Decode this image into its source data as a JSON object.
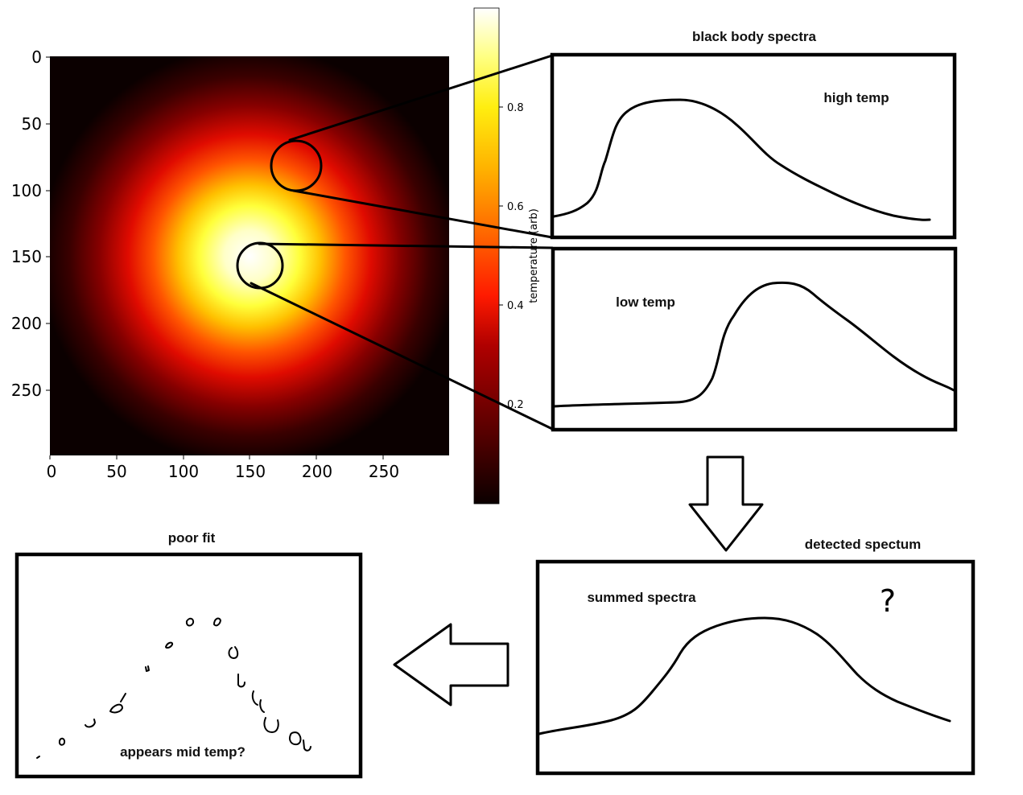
{
  "heatmap": {
    "x_ticks": [
      "0",
      "50",
      "100",
      "150",
      "200",
      "250"
    ],
    "y_ticks": [
      "0",
      "50",
      "100",
      "150",
      "200",
      "250"
    ],
    "colorbar_ticks": [
      "0.8",
      "0.6",
      "0.4",
      "0.2"
    ],
    "colorbar_label": "temperature (arb)"
  },
  "panels": {
    "top_title": "black body spectra",
    "high_label": "high temp",
    "low_label": "low temp",
    "detected_title": "detected spectum",
    "summed_label": "summed spectra",
    "question_mark": "?",
    "poor_fit_title": "poor fit",
    "mid_label": "appears mid temp?"
  },
  "colors": {
    "line": "#000000",
    "heat_low": "#0b0000",
    "heat_mid": "#ff2a00",
    "heat_high": "#ffffe6"
  }
}
